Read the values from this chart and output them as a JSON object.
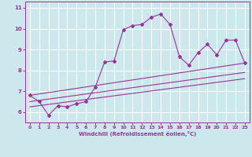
{
  "xlabel": "Windchill (Refroidissement éolien,°C)",
  "bg_color": "#cce8ec",
  "line_color": "#993399",
  "grid_color": "#ffffff",
  "spine_color": "#993399",
  "tick_color": "#993399",
  "ylim": [
    5.5,
    11.3
  ],
  "xlim": [
    -0.5,
    23.5
  ],
  "yticks": [
    6,
    7,
    8,
    9,
    10,
    11
  ],
  "xticks": [
    0,
    1,
    2,
    3,
    4,
    5,
    6,
    7,
    8,
    9,
    10,
    11,
    12,
    13,
    14,
    15,
    16,
    17,
    18,
    19,
    20,
    21,
    22,
    23
  ],
  "series1_x": [
    0,
    1,
    2,
    3,
    4,
    5,
    6,
    7,
    8,
    9,
    10,
    11,
    12,
    13,
    14,
    15,
    16,
    17,
    18,
    19,
    20,
    21,
    22,
    23
  ],
  "series1_y": [
    6.8,
    6.5,
    5.85,
    6.3,
    6.25,
    6.4,
    6.5,
    7.2,
    8.4,
    8.45,
    9.95,
    10.15,
    10.2,
    10.55,
    10.7,
    10.2,
    8.65,
    8.25,
    8.85,
    9.25,
    8.75,
    9.45,
    9.45,
    8.35
  ],
  "series2_x": [
    0,
    23
  ],
  "series2_y": [
    6.8,
    8.35
  ],
  "series3_x": [
    0,
    23
  ],
  "series3_y": [
    6.5,
    7.9
  ],
  "series4_x": [
    0,
    23
  ],
  "series4_y": [
    6.25,
    7.6
  ]
}
